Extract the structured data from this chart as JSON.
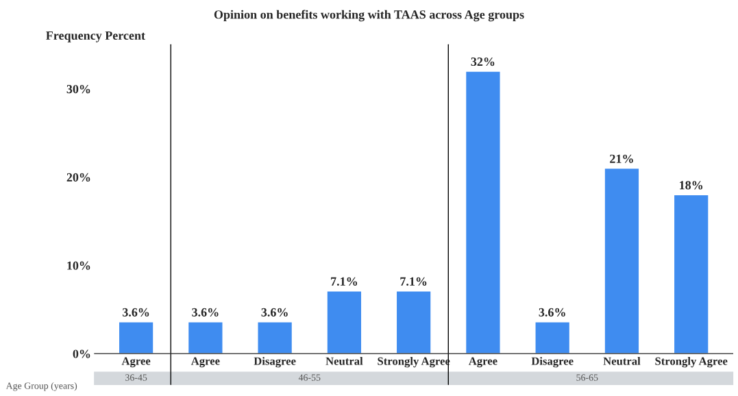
{
  "chart_data": {
    "type": "bar",
    "title": "Opinion on benefits working with TAAS across Age groups",
    "ylabel": "Frequency Percent",
    "categories": [
      "Agree",
      "Agree",
      "Disagree",
      "Neutral",
      "Strongly Agree",
      "Agree",
      "Disagree",
      "Neutral",
      "Strongly Agree"
    ],
    "values": [
      3.6,
      3.6,
      3.6,
      7.1,
      7.1,
      32,
      3.6,
      21,
      18
    ],
    "color": "#3f8cf0",
    "ylim": [
      0,
      35
    ],
    "yticks": [
      {
        "value": 0,
        "label": "0%"
      },
      {
        "value": 10,
        "label": "10%"
      },
      {
        "value": 20,
        "label": "20%"
      },
      {
        "value": 30,
        "label": "30%"
      }
    ],
    "data_labels": true,
    "value_labels": [
      "3.6%",
      "3.6%",
      "3.6%",
      "7.1%",
      "7.1%",
      "32%",
      "3.6%",
      "21%",
      "18%"
    ],
    "grid": false,
    "legend": false,
    "annotations": [
      "Age Group (years)",
      "36-45",
      "46-55",
      "56-65"
    ]
  }
}
